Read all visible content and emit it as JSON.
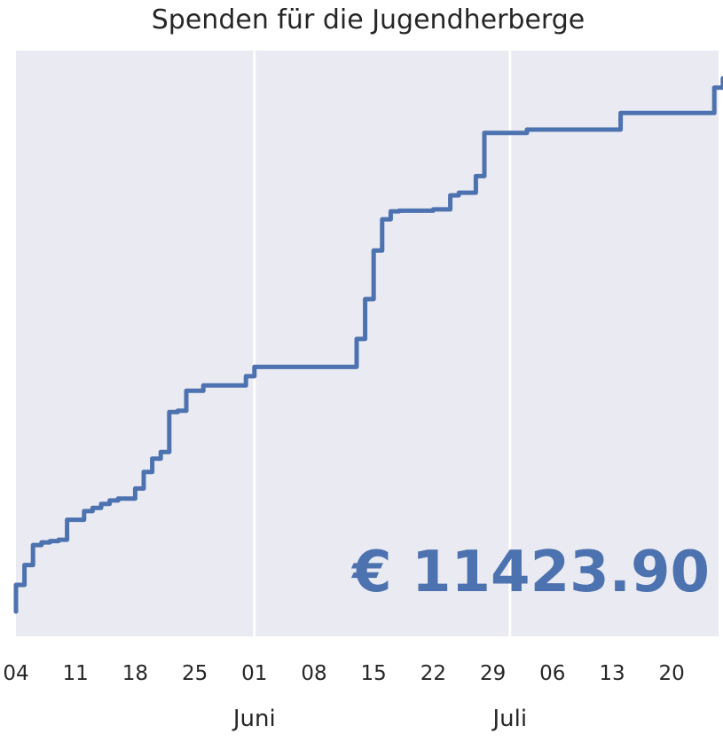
{
  "chart_data": {
    "type": "line",
    "title": "Spenden für die Jugendherberge",
    "xlabel": "",
    "ylabel": "",
    "x_ticks": [
      "04",
      "11",
      "18",
      "25",
      "01",
      "08",
      "15",
      "22",
      "29",
      "06",
      "13",
      "20"
    ],
    "month_labels": [
      "Juni",
      "Juli"
    ],
    "annotation": "€ 11423.90",
    "grid": "vertical lines at month boundaries",
    "x": [
      "05-04",
      "05-04",
      "05-05",
      "05-05",
      "05-06",
      "05-07",
      "05-07",
      "05-08",
      "05-09",
      "05-10",
      "05-10",
      "05-12",
      "05-12",
      "05-13",
      "05-13",
      "05-14",
      "05-15",
      "05-16",
      "05-18",
      "05-19",
      "05-20",
      "05-21",
      "05-21",
      "05-22",
      "05-22",
      "05-23",
      "05-24",
      "05-24",
      "05-26",
      "05-31",
      "05-31",
      "06-01",
      "06-01",
      "06-13",
      "06-13",
      "06-14",
      "06-14",
      "06-15",
      "06-15",
      "06-16",
      "06-17",
      "06-18",
      "06-22",
      "06-24",
      "06-24",
      "06-25",
      "06-27",
      "06-27",
      "06-28",
      "06-28",
      "07-03",
      "07-03",
      "07-14",
      "07-14",
      "07-25",
      "07-25",
      "07-26",
      "07-26",
      "07-27"
    ],
    "y": [
      0,
      400,
      600,
      700,
      1000,
      1020,
      1040,
      1060,
      1080,
      1200,
      1380,
      1460,
      1510,
      1540,
      1560,
      1620,
      1670,
      1700,
      1850,
      2100,
      2300,
      2330,
      2400,
      2900,
      3000,
      3020,
      3100,
      3320,
      3400,
      3480,
      3540,
      3600,
      3680,
      3740,
      4100,
      4400,
      4700,
      5050,
      5430,
      5900,
      6020,
      6030,
      6050,
      6150,
      6260,
      6300,
      6320,
      6550,
      7120,
      7200,
      7210,
      7250,
      7280,
      7500,
      7700,
      7880,
      7900,
      8020,
      8080
    ],
    "series": [
      {
        "name": "",
        "color": "#4c72b0"
      }
    ],
    "colors": {
      "background": "#eaeaf2",
      "line": "#4c72b0",
      "grid": "#ffffff"
    }
  }
}
